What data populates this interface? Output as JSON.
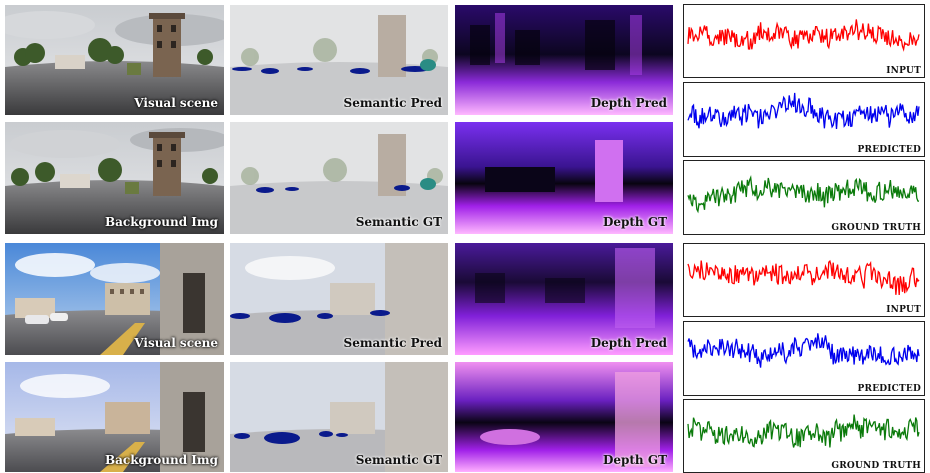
{
  "rows": [
    {
      "scene": "Visual scene",
      "semantic": "Semantic Pred",
      "depth": "Depth Pred",
      "signal": "INPUT"
    },
    {
      "scene": "Background Img",
      "semantic": "Semantic GT",
      "depth": "Depth GT",
      "signal": "PREDICTED"
    },
    {
      "scene": "Visual scene",
      "semantic": "Semantic Pred",
      "depth": "Depth Pred",
      "signal": "INPUT"
    },
    {
      "scene": "Background Img",
      "semantic": "Semantic GT",
      "depth": "Depth GT",
      "signal": "PREDICTED"
    }
  ],
  "signals": {
    "top": [
      "INPUT",
      "PREDICTED",
      "GROUND TRUTH"
    ],
    "bottom": [
      "INPUT",
      "PREDICTED",
      "GROUND TRUTH"
    ]
  },
  "colors": {
    "input": "#ff0000",
    "predicted": "#0000ee",
    "ground_truth": "#0a7a0a",
    "semantic_mask": "#0a1a8c",
    "semantic_teal": "#2a8c84",
    "depth_near": "#ffb0ff",
    "depth_mid": "#a020f0",
    "depth_far": "#0a0416"
  },
  "icons": [
    "photo-thumbnail",
    "segmentation-mask",
    "depth-heatmap",
    "audio-waveform"
  ]
}
